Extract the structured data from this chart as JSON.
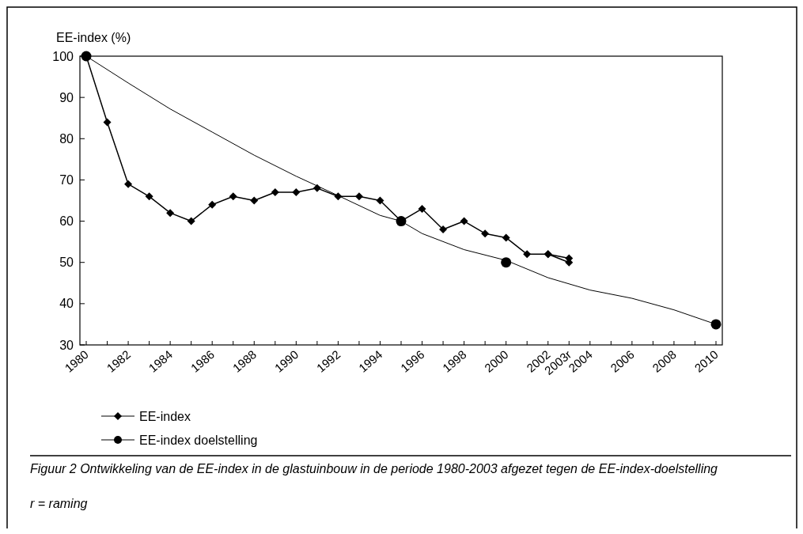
{
  "chart_data": {
    "type": "line",
    "ylabel": "EE-index (%)",
    "categories": [
      "1980",
      null,
      "1982",
      null,
      "1984",
      null,
      "1986",
      null,
      "1988",
      null,
      "1990",
      null,
      "1992",
      null,
      "1994",
      null,
      "1996",
      null,
      "1998",
      null,
      "2000",
      null,
      "2002",
      "2003r",
      "2004",
      null,
      "2006",
      null,
      "2008",
      null,
      "2010"
    ],
    "series": [
      {
        "name": "EE-index",
        "color": "#000000",
        "marker": "diamond",
        "values": [
          100,
          84,
          69,
          66,
          62,
          60,
          64,
          66,
          65,
          67,
          67,
          68,
          66,
          66,
          65,
          60,
          63,
          58,
          60,
          57,
          56,
          52,
          52,
          51,
          null,
          null,
          null,
          null,
          null,
          null,
          null
        ]
      },
      {
        "color": "#000000",
        "marker": "diamond",
        "values": [
          null,
          null,
          null,
          null,
          null,
          null,
          null,
          null,
          null,
          null,
          null,
          null,
          null,
          null,
          null,
          null,
          null,
          null,
          null,
          null,
          null,
          null,
          52,
          50,
          null,
          null,
          null,
          null,
          null,
          null,
          null
        ]
      },
      {
        "color": "#000000",
        "marker": "none",
        "values": [
          100,
          null,
          93.5,
          null,
          87.2,
          null,
          81.6,
          null,
          76,
          null,
          70.9,
          null,
          66.2,
          null,
          61.4,
          60,
          57,
          null,
          53.1,
          null,
          50.5,
          null,
          46.3,
          null,
          43.3,
          null,
          41.3,
          null,
          38.5,
          null,
          35
        ]
      },
      {
        "name": "EE-index doelstelling",
        "type": "scatter",
        "color": "#000000",
        "marker": "circle",
        "values": [
          100,
          null,
          null,
          null,
          null,
          null,
          null,
          null,
          null,
          null,
          null,
          null,
          null,
          null,
          null,
          60,
          null,
          null,
          null,
          null,
          50,
          null,
          null,
          null,
          null,
          null,
          null,
          null,
          null,
          null,
          35
        ]
      }
    ],
    "ylim": [
      30,
      100
    ],
    "yticks": [
      30,
      40,
      50,
      60,
      70,
      80,
      90,
      100
    ],
    "grid": false,
    "legend": "bottom left",
    "line_style": "solid",
    "annotations": [
      "Figuur 2 Ontwikkeling van de EE-index in de glastuinbouw in de periode 1980-2003 afgezet tegen de EE-index-doelstelling",
      "r = raming"
    ]
  }
}
